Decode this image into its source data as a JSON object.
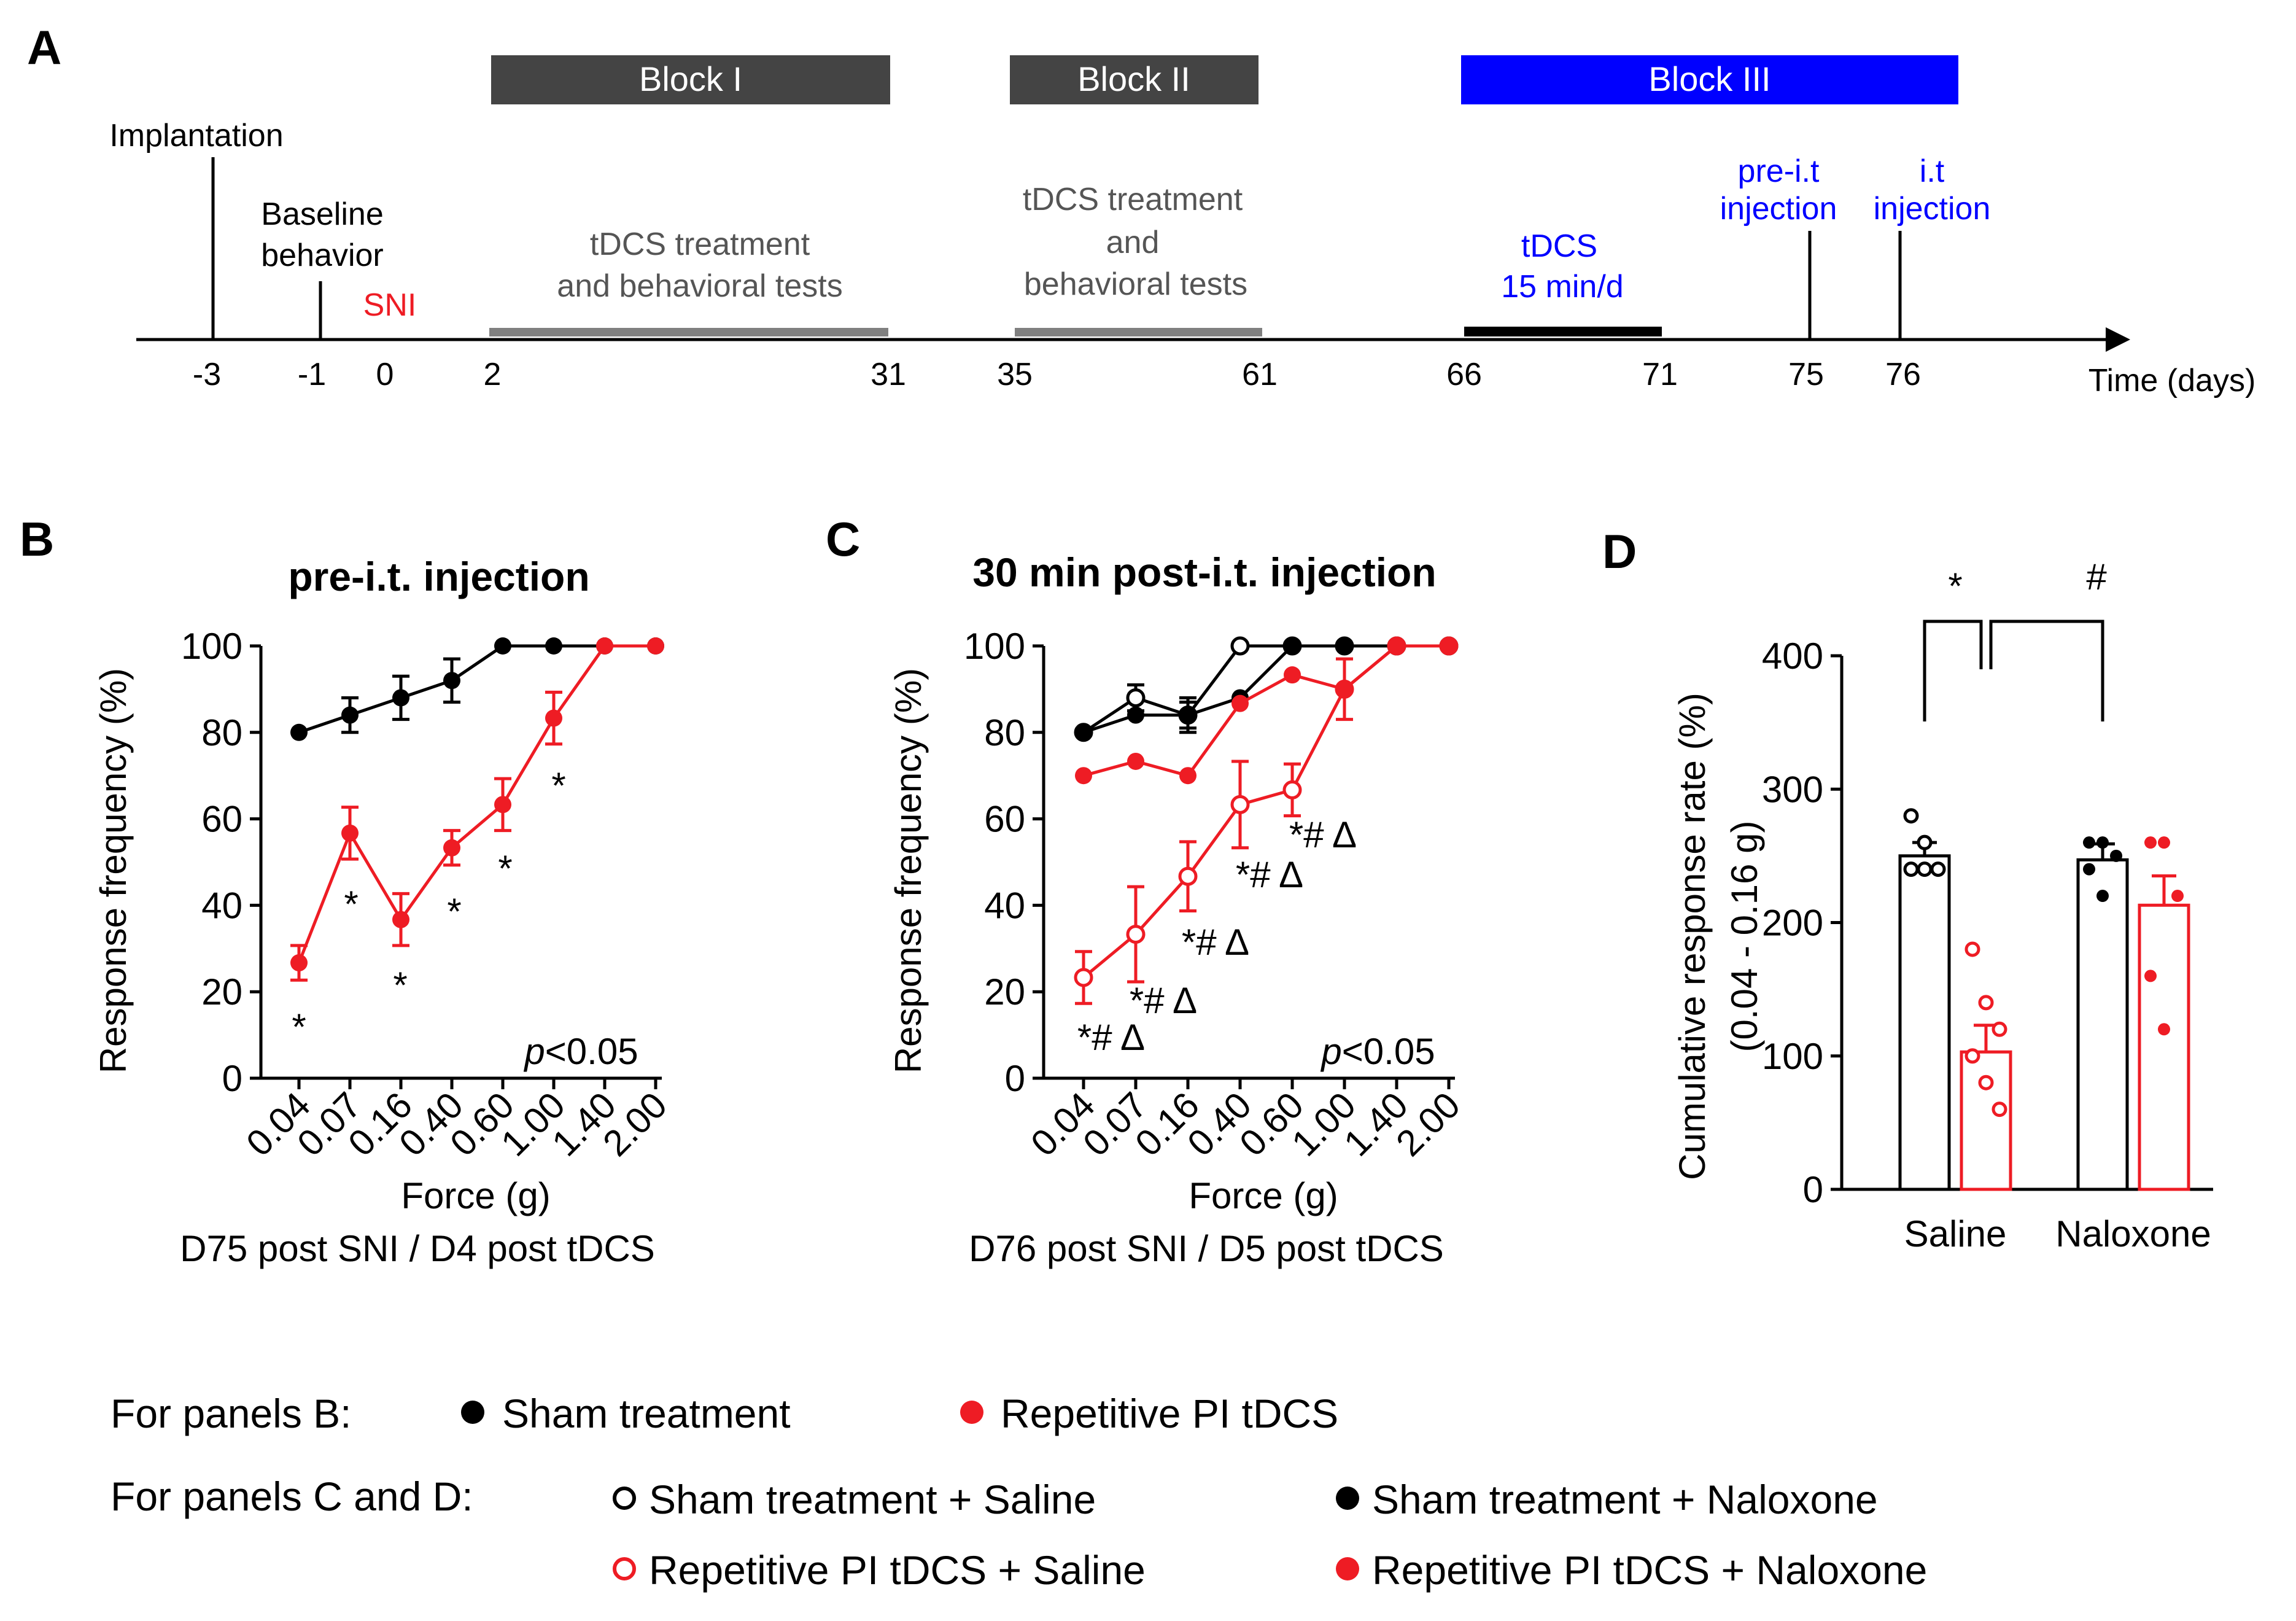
{
  "panel_labels": [
    "A",
    "B",
    "C",
    "D"
  ],
  "timeline": {
    "blocks": [
      {
        "label": "Block I",
        "color": "#444444"
      },
      {
        "label": "Block II",
        "color": "#444444"
      },
      {
        "label": "Block III",
        "color": "#0000ff"
      }
    ],
    "events": {
      "implantation": "Implantation",
      "baseline_1": "Baseline",
      "baseline_2": "behavior",
      "sni": "SNI",
      "tdcs1_1": "tDCS treatment",
      "tdcs1_2": "and behavioral tests",
      "tdcs2_1": "tDCS treatment",
      "tdcs2_2": "and",
      "tdcs2_3": "behavioral tests",
      "tdcs3_1": "tDCS",
      "tdcs3_2": "15 min/d",
      "pre_it_1": "pre-i.t",
      "pre_it_2": "injection",
      "it_1": "i.t",
      "it_2": "injection"
    },
    "ticks": [
      "-3",
      "-1",
      "0",
      "2",
      "31",
      "35",
      "61",
      "66",
      "71",
      "75",
      "76"
    ],
    "axis_label": "Time (days)"
  },
  "legend": {
    "panel_b_label": "For panels B:",
    "panel_b_sham": "Sham treatment",
    "panel_b_pi": "Repetitive PI tDCS",
    "panel_cd_label": "For panels C and D:",
    "sham_saline": "Sham treatment + Saline",
    "sham_naloxone": "Sham treatment + Naloxone",
    "pi_saline": "Repetitive PI tDCS + Saline",
    "pi_naloxone": "Repetitive PI tDCS + Naloxone"
  },
  "colors": {
    "sham": "#000000",
    "pi": "#ee1c24",
    "blue": "#0000ff"
  },
  "chart_data": [
    {
      "panel": "B",
      "type": "line",
      "title": "pre-i.t. injection",
      "xlabel": "Force (g)",
      "ylabel": "Response frequency (%)",
      "subtitle": "D75 post SNI / D4 post tDCS",
      "categories": [
        "0.04",
        "0.07",
        "0.16",
        "0.40",
        "0.60",
        "1.00",
        "1.40",
        "2.00"
      ],
      "yticks": [
        "0",
        "20",
        "40",
        "60",
        "80",
        "100"
      ],
      "ylim": [
        0,
        100
      ],
      "pvalue_prefix": "p",
      "pvalue_suffix": "<0.05",
      "series": [
        {
          "name": "Sham treatment",
          "color": "#000000",
          "filled": true,
          "values": [
            80,
            84,
            88,
            92,
            100,
            100,
            100,
            100
          ],
          "errors": [
            0,
            4,
            5,
            5,
            0,
            0,
            0,
            0
          ]
        },
        {
          "name": "Repetitive PI tDCS",
          "color": "#ee1c24",
          "filled": true,
          "values": [
            26.7,
            56.7,
            36.7,
            53.3,
            63.3,
            83.3,
            100,
            100
          ],
          "errors": [
            4,
            6,
            6,
            4,
            6,
            6,
            0,
            0
          ]
        }
      ],
      "annotations": [
        "*",
        "*",
        "*",
        "*",
        "*",
        "*"
      ]
    },
    {
      "panel": "C",
      "type": "line",
      "title": "30 min post-i.t. injection",
      "xlabel": "Force (g)",
      "ylabel": "Response frequency (%)",
      "subtitle": "D76 post SNI / D5 post tDCS",
      "categories": [
        "0.04",
        "0.07",
        "0.16",
        "0.40",
        "0.60",
        "1.00",
        "1.40",
        "2.00"
      ],
      "yticks": [
        "0",
        "20",
        "40",
        "60",
        "80",
        "100"
      ],
      "ylim": [
        0,
        100
      ],
      "pvalue_prefix": "p",
      "pvalue_suffix": "<0.05",
      "series": [
        {
          "name": "Sham treatment + Saline",
          "color": "#000000",
          "filled": false,
          "values": [
            80,
            88,
            84,
            100,
            100,
            100,
            100,
            100
          ],
          "errors": [
            0,
            3,
            3,
            0,
            0,
            0,
            0,
            0
          ]
        },
        {
          "name": "Sham treatment + Naloxone",
          "color": "#000000",
          "filled": true,
          "values": [
            80,
            84,
            84,
            88,
            100,
            100,
            100,
            100
          ],
          "errors": [
            0,
            0,
            4,
            0,
            0,
            0,
            0,
            0
          ]
        },
        {
          "name": "Repetitive PI tDCS + Saline",
          "color": "#ee1c24",
          "filled": false,
          "values": [
            23.3,
            33.3,
            46.7,
            63.3,
            66.7,
            90,
            100,
            100
          ],
          "errors": [
            6,
            11,
            8,
            10,
            6,
            7,
            0,
            0
          ]
        },
        {
          "name": "Repetitive PI tDCS + Naloxone",
          "color": "#ee1c24",
          "filled": true,
          "values": [
            70,
            73.3,
            70,
            86.7,
            93.3,
            90,
            100,
            100
          ],
          "errors": [
            0,
            0,
            0,
            0,
            0,
            0,
            0,
            0
          ]
        }
      ],
      "annotations": [
        "*# Δ",
        "*# Δ",
        "*# Δ",
        "*# Δ",
        "*# Δ"
      ]
    },
    {
      "panel": "D",
      "type": "bar",
      "ylabel": "Cumulative response rate (%)",
      "ylabel2": "(0.04 - 0.16 g)",
      "categories": [
        "Saline",
        "Naloxone"
      ],
      "yticks": [
        "0",
        "100",
        "200",
        "300",
        "400"
      ],
      "ylim": [
        0,
        400
      ],
      "series": [
        {
          "name": "Sham treatment",
          "color": "#000000",
          "values": [
            250,
            247
          ],
          "errors": [
            10,
            12
          ],
          "points": [
            [
              280,
              260,
              240,
              240,
              240
            ],
            [
              260,
              260,
              250,
              240,
              220
            ]
          ]
        },
        {
          "name": "Repetitive PI tDCS",
          "color": "#ee1c24",
          "values": [
            103,
            213
          ],
          "errors": [
            20,
            22
          ],
          "points": [
            [
              180,
              140,
              120,
              100,
              80,
              60
            ],
            [
              260,
              260,
              220,
              160,
              120
            ]
          ]
        }
      ],
      "significance": [
        "*",
        "#"
      ]
    }
  ]
}
